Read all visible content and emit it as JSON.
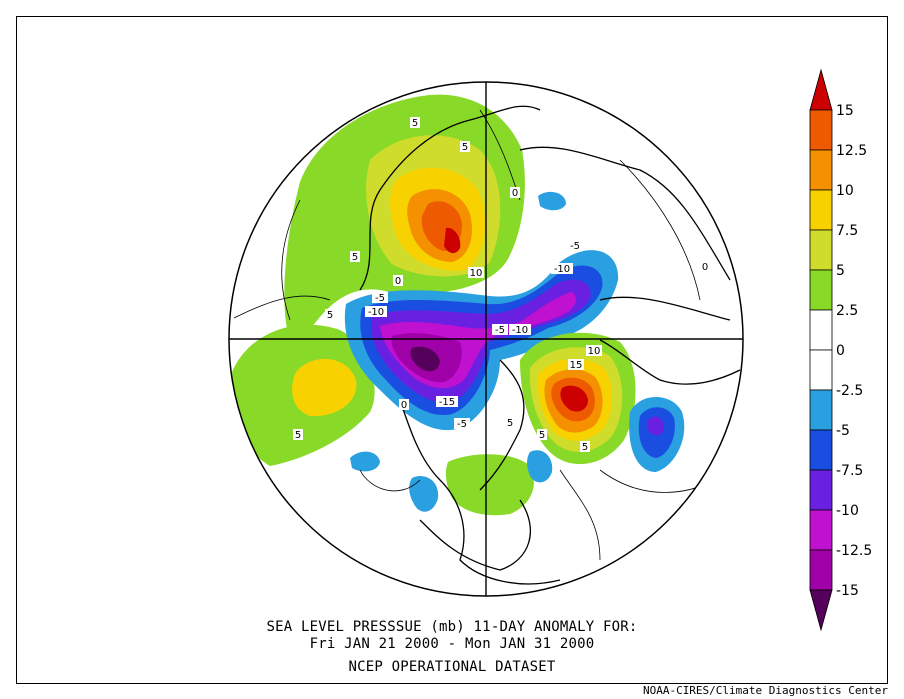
{
  "title_line1": "SEA LEVEL PRESSSUE (mb)   11-DAY ANOMALY FOR:",
  "title_line2": "Fri JAN 21 2000 - Mon JAN 31 2000",
  "dataset": "NCEP OPERATIONAL DATASET",
  "credit": "NOAA-CIRES/Climate Diagnostics Center",
  "colorbar": {
    "tick_labels": [
      "15",
      "12.5",
      "10",
      "7.5",
      "5",
      "2.5",
      "0",
      "-2.5",
      "-5",
      "-7.5",
      "-10",
      "-12.5",
      "-15"
    ],
    "bins": [
      {
        "range": "above 15",
        "color": "#cc0000"
      },
      {
        "range": "12.5 to 15",
        "color": "#ee5a00"
      },
      {
        "range": "10 to 12.5",
        "color": "#f59000"
      },
      {
        "range": "7.5 to 10",
        "color": "#f7d200"
      },
      {
        "range": "5 to 7.5",
        "color": "#cfdc2c"
      },
      {
        "range": "2.5 to 5",
        "color": "#88d928"
      },
      {
        "range": "0 to 2.5",
        "color": "#ffffff"
      },
      {
        "range": "-2.5 to 0",
        "color": "#ffffff"
      },
      {
        "range": "-5 to -2.5",
        "color": "#2aa0e0"
      },
      {
        "range": "-7.5 to -5",
        "color": "#1a4ee0"
      },
      {
        "range": "-10 to -7.5",
        "color": "#6a20e0"
      },
      {
        "range": "-12.5 to -10",
        "color": "#c010d0"
      },
      {
        "range": "-15 to -12.5",
        "color": "#a000a8"
      },
      {
        "range": "below -15",
        "color": "#55005a"
      }
    ]
  },
  "map": {
    "projection": "north polar stereographic",
    "contour_labels": [
      "5",
      "5",
      "5",
      "5",
      "5",
      "10",
      "5",
      "-5",
      "-10",
      "-5",
      "-10",
      "-5",
      "-10",
      "-15",
      "-5",
      "15",
      "10",
      "5",
      "5",
      "0",
      "0",
      "0",
      "0"
    ]
  }
}
